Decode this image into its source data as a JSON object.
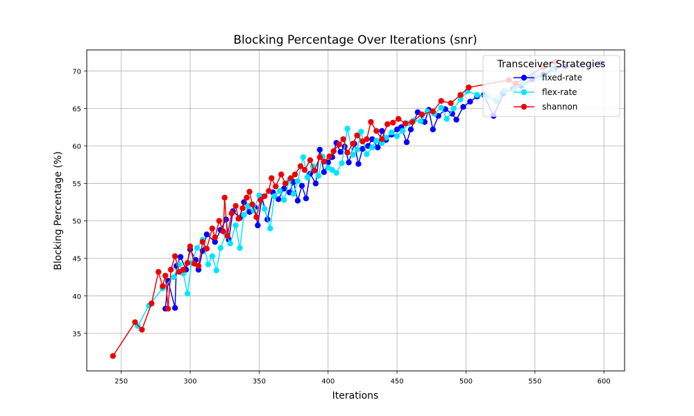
{
  "chart_data": {
    "type": "line",
    "title": "Blocking Percentage Over Iterations (snr)",
    "xlabel": "Iterations",
    "ylabel": "Blocking Percentage (%)",
    "xlim": [
      225,
      615
    ],
    "ylim": [
      30,
      72.8
    ],
    "xticks": [
      250,
      300,
      350,
      400,
      450,
      500,
      550,
      600
    ],
    "yticks": [
      35,
      40,
      45,
      50,
      55,
      60,
      65,
      70
    ],
    "grid": true,
    "legend": {
      "title": "Transceiver Strategies",
      "position": "top-right"
    },
    "series": [
      {
        "name": "fixed-rate",
        "color": "#0000ff",
        "points": [
          [
            282,
            38.3
          ],
          [
            284,
            42.0
          ],
          [
            289,
            38.4
          ],
          [
            290,
            44.0
          ],
          [
            293,
            45.2
          ],
          [
            297,
            43.5
          ],
          [
            300,
            46.2
          ],
          [
            304,
            44.8
          ],
          [
            306,
            43.5
          ],
          [
            309,
            46.0
          ],
          [
            312,
            48.2
          ],
          [
            318,
            47.2
          ],
          [
            322,
            48.8
          ],
          [
            326,
            50.2
          ],
          [
            328,
            47.5
          ],
          [
            331,
            51.3
          ],
          [
            336,
            50.4
          ],
          [
            339,
            52.5
          ],
          [
            343,
            51.2
          ],
          [
            347,
            51.8
          ],
          [
            349,
            49.4
          ],
          [
            352,
            53.2
          ],
          [
            356,
            50.2
          ],
          [
            360,
            53.8
          ],
          [
            364,
            52.9
          ],
          [
            368,
            54.3
          ],
          [
            372,
            53.8
          ],
          [
            375,
            55.2
          ],
          [
            378,
            52.7
          ],
          [
            381,
            54.7
          ],
          [
            384,
            53.0
          ],
          [
            387,
            56.3
          ],
          [
            391,
            55.0
          ],
          [
            394,
            59.5
          ],
          [
            397,
            56.5
          ],
          [
            400,
            57.8
          ],
          [
            403,
            58.5
          ],
          [
            406,
            60.4
          ],
          [
            409,
            59.2
          ],
          [
            412,
            59.9
          ],
          [
            415,
            57.8
          ],
          [
            419,
            60.3
          ],
          [
            422,
            57.6
          ],
          [
            425,
            59.6
          ],
          [
            429,
            60.0
          ],
          [
            432,
            60.9
          ],
          [
            436,
            59.8
          ],
          [
            439,
            62.0
          ],
          [
            442,
            60.8
          ],
          [
            446,
            61.5
          ],
          [
            450,
            62.2
          ],
          [
            453,
            62.5
          ],
          [
            457,
            60.5
          ],
          [
            460,
            62.2
          ],
          [
            465,
            64.5
          ],
          [
            470,
            63.2
          ],
          [
            473,
            64.8
          ],
          [
            476,
            62.2
          ],
          [
            480,
            64.0
          ],
          [
            485,
            64.9
          ],
          [
            490,
            64.3
          ],
          [
            493,
            63.5
          ],
          [
            498,
            65.2
          ],
          [
            503,
            65.9
          ],
          [
            508,
            66.6
          ],
          [
            513,
            66.8
          ],
          [
            520,
            64.0
          ],
          [
            527,
            67.0
          ],
          [
            534,
            67.6
          ],
          [
            540,
            68.0
          ],
          [
            548,
            68.9
          ],
          [
            556,
            69.5
          ],
          [
            564,
            70.3
          ],
          [
            572,
            70.6
          ],
          [
            598,
            71.0
          ]
        ]
      },
      {
        "name": "flex-rate",
        "color": "#00e5ff",
        "points": [
          [
            262,
            36.0
          ],
          [
            270,
            38.7
          ],
          [
            280,
            41.0
          ],
          [
            288,
            42.5
          ],
          [
            292,
            44.2
          ],
          [
            295,
            43.0
          ],
          [
            298,
            40.3
          ],
          [
            301,
            44.4
          ],
          [
            305,
            46.4
          ],
          [
            309,
            47.5
          ],
          [
            313,
            44.2
          ],
          [
            316,
            45.3
          ],
          [
            319,
            43.4
          ],
          [
            322,
            46.4
          ],
          [
            326,
            48.3
          ],
          [
            329,
            47.0
          ],
          [
            333,
            49.4
          ],
          [
            336,
            46.4
          ],
          [
            339,
            50.8
          ],
          [
            342,
            52.0
          ],
          [
            346,
            51.4
          ],
          [
            350,
            53.4
          ],
          [
            354,
            51.6
          ],
          [
            358,
            49.0
          ],
          [
            361,
            53.3
          ],
          [
            365,
            54.0
          ],
          [
            368,
            52.8
          ],
          [
            372,
            55.5
          ],
          [
            375,
            53.6
          ],
          [
            378,
            55.3
          ],
          [
            382,
            58.5
          ],
          [
            385,
            55.8
          ],
          [
            389,
            57.3
          ],
          [
            393,
            56.0
          ],
          [
            396,
            58.6
          ],
          [
            400,
            57.1
          ],
          [
            403,
            56.8
          ],
          [
            406,
            56.4
          ],
          [
            410,
            57.7
          ],
          [
            414,
            62.3
          ],
          [
            418,
            58.8
          ],
          [
            421,
            59.5
          ],
          [
            424,
            61.9
          ],
          [
            428,
            58.9
          ],
          [
            432,
            59.8
          ],
          [
            435,
            60.7
          ],
          [
            439,
            60.4
          ],
          [
            442,
            61.1
          ],
          [
            446,
            61.8
          ],
          [
            450,
            61.3
          ],
          [
            454,
            62.0
          ],
          [
            458,
            63.0
          ],
          [
            462,
            63.4
          ],
          [
            467,
            63.3
          ],
          [
            472,
            64.6
          ],
          [
            477,
            64.3
          ],
          [
            482,
            65.1
          ],
          [
            486,
            63.6
          ],
          [
            491,
            65.0
          ],
          [
            496,
            66.2
          ],
          [
            501,
            67.3
          ],
          [
            508,
            66.8
          ],
          [
            515,
            66.6
          ],
          [
            522,
            66.0
          ],
          [
            528,
            67.3
          ],
          [
            535,
            67.5
          ],
          [
            542,
            68.4
          ],
          [
            549,
            69.6
          ],
          [
            556,
            69.1
          ],
          [
            563,
            70.2
          ]
        ]
      },
      {
        "name": "shannon",
        "color": "#ee0000",
        "points": [
          [
            244,
            32.0
          ],
          [
            260,
            36.5
          ],
          [
            265,
            35.5
          ],
          [
            272,
            39.0
          ],
          [
            277,
            43.2
          ],
          [
            280,
            41.3
          ],
          [
            282,
            42.7
          ],
          [
            284,
            38.3
          ],
          [
            286,
            43.5
          ],
          [
            289,
            45.3
          ],
          [
            292,
            43.2
          ],
          [
            295,
            43.5
          ],
          [
            298,
            44.4
          ],
          [
            300,
            46.6
          ],
          [
            303,
            44.3
          ],
          [
            306,
            44.0
          ],
          [
            309,
            47.2
          ],
          [
            312,
            46.3
          ],
          [
            316,
            49.0
          ],
          [
            318,
            47.8
          ],
          [
            321,
            50.0
          ],
          [
            324,
            48.6
          ],
          [
            325,
            53.1
          ],
          [
            327,
            48.0
          ],
          [
            330,
            51.0
          ],
          [
            333,
            52.0
          ],
          [
            335,
            50.3
          ],
          [
            338,
            51.7
          ],
          [
            341,
            53.1
          ],
          [
            343,
            53.9
          ],
          [
            345,
            52.2
          ],
          [
            348,
            50.5
          ],
          [
            351,
            52.8
          ],
          [
            354,
            53.3
          ],
          [
            357,
            54.0
          ],
          [
            359,
            55.7
          ],
          [
            362,
            54.6
          ],
          [
            366,
            56.2
          ],
          [
            369,
            55.0
          ],
          [
            373,
            55.7
          ],
          [
            376,
            56.2
          ],
          [
            380,
            57.3
          ],
          [
            383,
            56.8
          ],
          [
            387,
            58.1
          ],
          [
            390,
            56.7
          ],
          [
            394,
            58.5
          ],
          [
            397,
            57.9
          ],
          [
            401,
            58.6
          ],
          [
            404,
            59.3
          ],
          [
            408,
            60.2
          ],
          [
            411,
            60.9
          ],
          [
            414,
            59.1
          ],
          [
            418,
            60.3
          ],
          [
            421,
            61.4
          ],
          [
            425,
            60.6
          ],
          [
            428,
            60.9
          ],
          [
            431,
            63.2
          ],
          [
            435,
            62.0
          ],
          [
            439,
            60.9
          ],
          [
            443,
            62.9
          ],
          [
            447,
            63.1
          ],
          [
            451,
            63.6
          ],
          [
            456,
            63.0
          ],
          [
            461,
            63.2
          ],
          [
            468,
            64.2
          ],
          [
            476,
            64.6
          ],
          [
            482,
            66.0
          ],
          [
            489,
            65.7
          ],
          [
            496,
            66.8
          ],
          [
            502,
            67.8
          ],
          [
            531,
            68.8
          ],
          [
            536,
            68.3
          ],
          [
            556,
            70.5
          ],
          [
            565,
            71.2
          ]
        ]
      }
    ]
  }
}
